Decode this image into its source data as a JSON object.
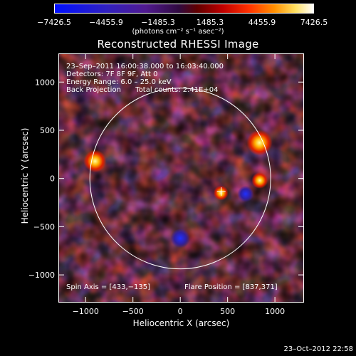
{
  "colorbar": {
    "tick_labels": [
      "−7426.5",
      "−4455.9",
      "−1485.3",
      "1485.3",
      "4455.9",
      "7426.5"
    ],
    "units": "(photons cm⁻² s⁻¹ asec⁻²)",
    "min": -7426.5,
    "max": 7426.5
  },
  "info": {
    "time": "23–Sep–2011 16:00:38.000 to 16:03:40.000",
    "detectors": "Detectors: 7F 8F 9F, Att 0",
    "energy": "Energy Range: 6.0 – 25.0 keV",
    "method": "Back Projection",
    "counts": "Total counts: 2.41E+04",
    "spin_axis": "Spin Axis = [433,−135]",
    "flare_position": "Flare Position = [837,371]"
  },
  "footer_date": "23–Oct–2012 22:58",
  "chart_data": {
    "type": "heatmap",
    "title": "Reconstructed RHESSI Image",
    "xlabel": "Heliocentric X (arcsec)",
    "ylabel": "Heliocentric Y (arcsec)",
    "xlim": [
      -1280,
      1300
    ],
    "ylim": [
      -1280,
      1290
    ],
    "xticks": [
      -1000,
      -500,
      0,
      500,
      1000
    ],
    "xtick_labels": [
      "−1000",
      "−500",
      "0",
      "500",
      "1000"
    ],
    "yticks": [
      1000,
      500,
      0,
      -500,
      -1000
    ],
    "ytick_labels": [
      "1000",
      "500",
      "0",
      "−500",
      "−1000"
    ],
    "solar_limb_radius": 955,
    "spin_axis": [
      433,
      -135
    ],
    "flare_position": [
      837,
      371
    ],
    "bright_sources": [
      {
        "x": 837,
        "y": 371,
        "value": 6500
      },
      {
        "x": -900,
        "y": 180,
        "value": 5500
      },
      {
        "x": 840,
        "y": -20,
        "value": 3500
      },
      {
        "x": 430,
        "y": -150,
        "value": 3000
      },
      {
        "x": 0,
        "y": -620,
        "value": -4500
      },
      {
        "x": 690,
        "y": -160,
        "value": -3500
      }
    ]
  }
}
